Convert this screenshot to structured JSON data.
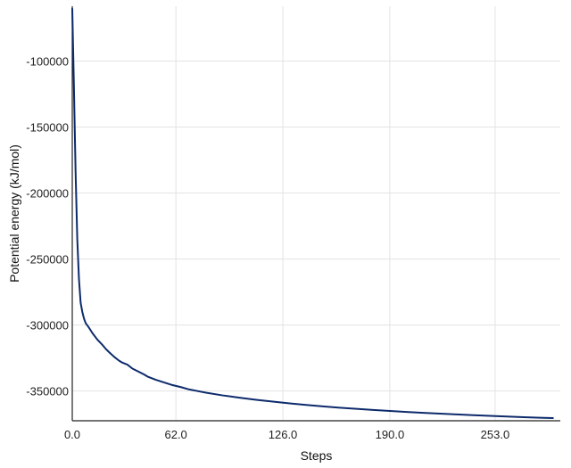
{
  "chart_data": {
    "type": "line",
    "title": "",
    "xlabel": "Steps",
    "ylabel": "Potential energy (kJ/mol)",
    "xlim": [
      0,
      292
    ],
    "ylim": [
      -372500,
      -58500
    ],
    "x_ticks": [
      0,
      62,
      126,
      190,
      253
    ],
    "x_tick_labels": [
      "0.0",
      "62.0",
      "126.0",
      "190.0",
      "253.0"
    ],
    "y_ticks": [
      -100000,
      -150000,
      -200000,
      -250000,
      -300000,
      -350000
    ],
    "y_tick_labels": [
      "-100000",
      "-150000",
      "-200000",
      "-250000",
      "-300000",
      "-350000"
    ],
    "grid": true,
    "legend": "none",
    "series": [
      {
        "color": "#0d2a6b",
        "x": [
          0,
          1,
          2,
          3,
          4,
          5,
          6,
          7,
          8,
          10,
          12,
          15,
          18,
          20,
          22,
          25,
          28,
          30,
          33,
          36,
          40,
          43,
          45,
          50,
          55,
          60,
          65,
          70,
          75,
          80,
          90,
          100,
          110,
          120,
          130,
          140,
          150,
          160,
          170,
          180,
          190,
          200,
          210,
          220,
          230,
          240,
          250,
          260,
          270,
          280,
          285,
          288
        ],
        "y": [
          -60000,
          -120000,
          -185000,
          -235000,
          -265000,
          -283000,
          -290000,
          -295000,
          -298500,
          -302000,
          -306000,
          -311000,
          -315000,
          -318000,
          -320500,
          -324000,
          -327000,
          -328500,
          -330000,
          -333000,
          -335500,
          -337500,
          -339000,
          -341500,
          -343500,
          -345500,
          -347000,
          -348800,
          -350000,
          -351200,
          -353300,
          -355000,
          -356600,
          -358000,
          -359300,
          -360500,
          -361600,
          -362600,
          -363500,
          -364300,
          -365100,
          -365800,
          -366500,
          -367100,
          -367700,
          -368300,
          -368800,
          -369300,
          -369800,
          -370200,
          -370400,
          -370500
        ]
      }
    ]
  }
}
